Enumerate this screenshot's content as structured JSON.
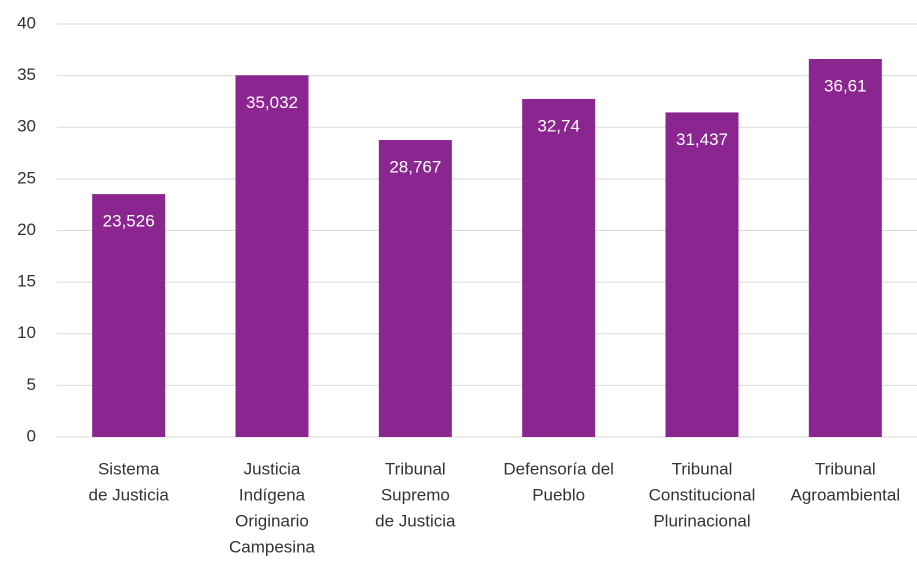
{
  "chart_data": {
    "type": "bar",
    "categories": [
      [
        "Sistema",
        "de Justicia"
      ],
      [
        "Justicia",
        "Indígena",
        "Originario",
        "Campesina"
      ],
      [
        "Tribunal",
        "Supremo",
        "de Justicia"
      ],
      [
        "Defensoría del",
        "Pueblo"
      ],
      [
        "Tribunal",
        "Constitucional",
        "Plurinacional"
      ],
      [
        "Tribunal",
        "Agroambiental"
      ]
    ],
    "values": [
      23.526,
      35.032,
      28.767,
      32.74,
      31.437,
      36.61
    ],
    "value_labels": [
      "23,526",
      "35,032",
      "28,767",
      "32,74",
      "31,437",
      "36,61"
    ],
    "color": "#8b2690",
    "ylim": [
      0,
      40
    ],
    "yticks": [
      0,
      5,
      10,
      15,
      20,
      25,
      30,
      35,
      40
    ],
    "grid": true
  }
}
